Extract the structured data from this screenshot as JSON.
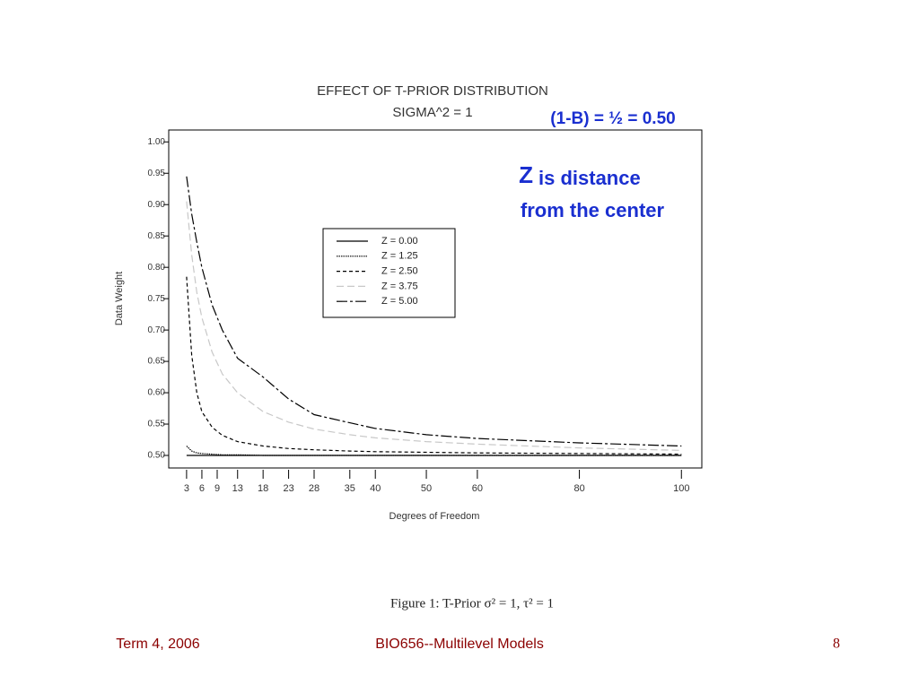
{
  "chart_data": {
    "type": "line",
    "title": "EFFECT OF T-PRIOR DISTRIBUTION",
    "subtitle": "SIGMA^2 = 1",
    "xlabel": "Degrees of Freedom",
    "ylabel": "Data Weight",
    "x": [
      3,
      4,
      5,
      6,
      8,
      10,
      13,
      18,
      23,
      28,
      35,
      40,
      50,
      60,
      80,
      100
    ],
    "series": [
      {
        "name": "Z = 0.00",
        "color": "#000000",
        "values": [
          0.5,
          0.5,
          0.5,
          0.5,
          0.5,
          0.5,
          0.5,
          0.5,
          0.5,
          0.5,
          0.5,
          0.5,
          0.5,
          0.5,
          0.5,
          0.5
        ]
      },
      {
        "name": "Z = 1.25",
        "color": "#000000",
        "values": [
          0.515,
          0.507,
          0.504,
          0.503,
          0.502,
          0.501,
          0.501,
          0.5,
          0.5,
          0.5,
          0.5,
          0.5,
          0.5,
          0.5,
          0.5,
          0.5
        ]
      },
      {
        "name": "Z = 2.50",
        "color": "#000000",
        "values": [
          0.785,
          0.66,
          0.6,
          0.57,
          0.545,
          0.532,
          0.522,
          0.515,
          0.511,
          0.509,
          0.507,
          0.506,
          0.505,
          0.504,
          0.503,
          0.502
        ]
      },
      {
        "name": "Z = 3.75",
        "color": "#c8c8c8",
        "values": [
          0.905,
          0.82,
          0.76,
          0.72,
          0.665,
          0.63,
          0.6,
          0.57,
          0.553,
          0.542,
          0.533,
          0.528,
          0.522,
          0.518,
          0.512,
          0.508
        ]
      },
      {
        "name": "Z = 5.00",
        "color": "#000000",
        "values": [
          0.945,
          0.885,
          0.84,
          0.8,
          0.74,
          0.7,
          0.655,
          0.625,
          0.59,
          0.565,
          0.552,
          0.543,
          0.533,
          0.527,
          0.52,
          0.515
        ]
      }
    ],
    "xlim": [
      -0.5,
      104
    ],
    "xticks": [
      3,
      6,
      9,
      13,
      18,
      23,
      28,
      35,
      40,
      50,
      60,
      80,
      100
    ],
    "ylim": [
      0.48,
      1.019
    ],
    "yticks": [
      {
        "value": 1,
        "label": "1.00"
      },
      0.95,
      {
        "value": 0.9,
        "label": "0.90"
      },
      0.85,
      {
        "value": 0.8,
        "label": "0.80"
      },
      0.75,
      {
        "value": 0.7,
        "label": "0.70"
      },
      0.65,
      {
        "value": 0.6,
        "label": "0.60"
      },
      0.55,
      {
        "value": 0.5,
        "label": "0.50"
      }
    ],
    "legend": "upper-center",
    "annotations": [
      "(1-B) = ½ = 0.50",
      "Z",
      "is distance",
      "from the center"
    ]
  },
  "caption": "Figure 1:  T-Prior σ² = 1,  τ² = 1",
  "footer": {
    "left": "Term 4, 2006",
    "center": "BIO656--Multilevel Models",
    "right": "8"
  }
}
